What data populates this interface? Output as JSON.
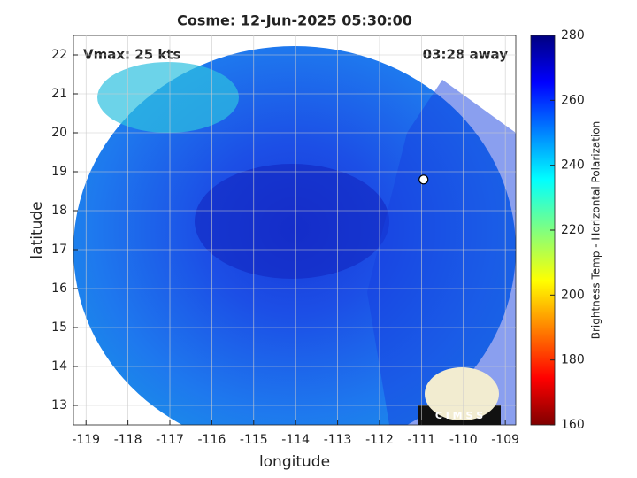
{
  "chart_data": {
    "type": "map",
    "title": "Cosme: 12-Jun-2025 05:30:00",
    "annotations": [
      "Vmax: 25 kts",
      "03:28 away"
    ],
    "x_label": "longitude",
    "y_label": "latitude",
    "xlim": [
      -119.3,
      -108.75
    ],
    "xticks": [
      -119,
      -118,
      -117,
      -116,
      -115,
      -114,
      -113,
      -112,
      -111,
      -110,
      -109
    ],
    "ylim": [
      12.5,
      22.5
    ],
    "yticks": [
      13,
      14,
      15,
      16,
      17,
      18,
      19,
      20,
      21,
      22
    ],
    "grid": true,
    "center": {
      "x": -110.95,
      "y": 18.8
    },
    "colorbar": {
      "label": "Brightness Temp - Horizontal Polarization",
      "lim": [
        160,
        280
      ],
      "ticks": [
        160,
        180,
        200,
        220,
        240,
        260,
        280
      ]
    },
    "logo": "C I M S S"
  }
}
